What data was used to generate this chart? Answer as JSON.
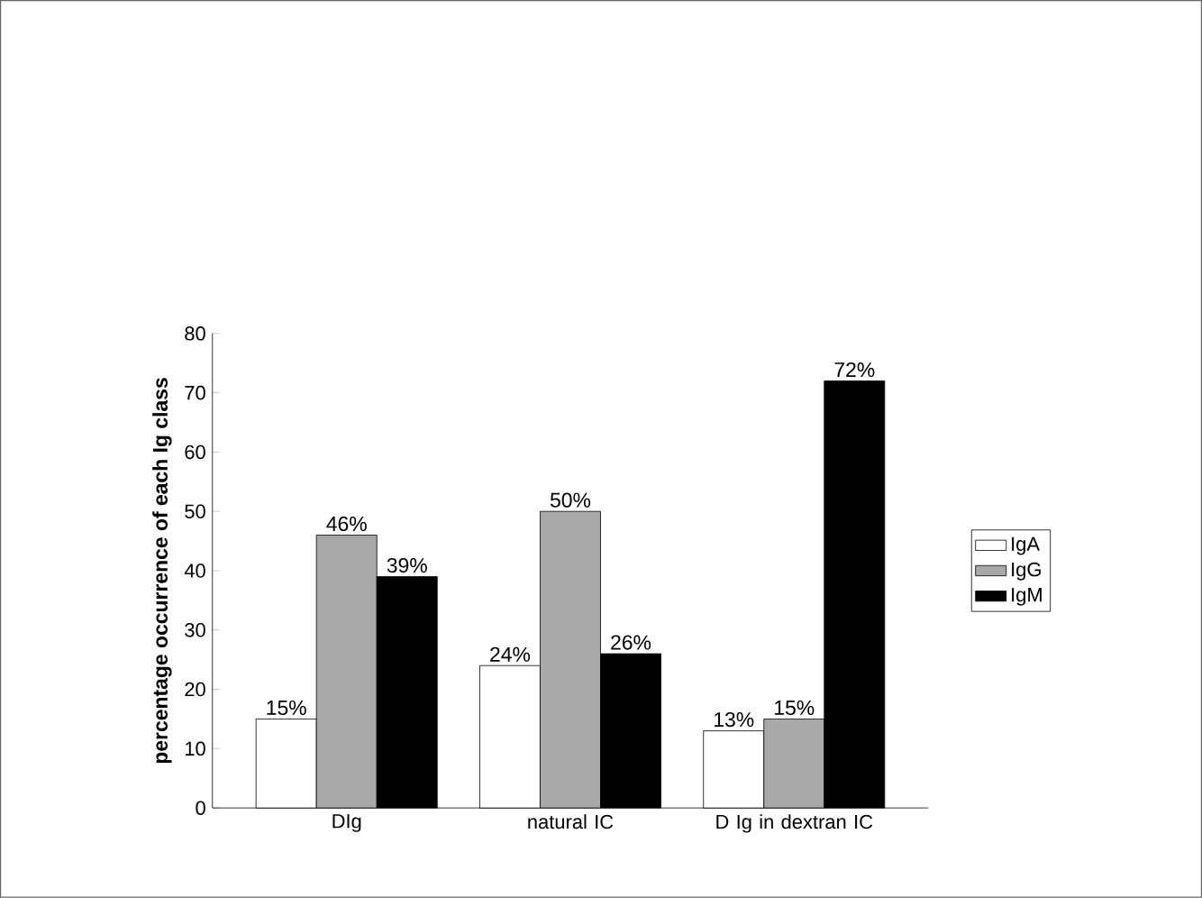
{
  "chart_data": {
    "type": "bar",
    "ylabel": "percentage occurrence of each Ig class",
    "categories": [
      "DIg",
      "natural IC",
      "D Ig in dextran IC"
    ],
    "series": [
      {
        "name": "IgA",
        "color": "#ffffff",
        "values": [
          15,
          24,
          13
        ],
        "value_labels": [
          "15%",
          "24%",
          "13%"
        ]
      },
      {
        "name": "IgG",
        "color": "#a8a8a8",
        "values": [
          46,
          50,
          15
        ],
        "value_labels": [
          "46%",
          "50%",
          "15%"
        ]
      },
      {
        "name": "IgM",
        "color": "#000000",
        "values": [
          39,
          26,
          72
        ],
        "value_labels": [
          "39%",
          "26%",
          "72%"
        ]
      }
    ],
    "ylim": [
      0,
      80
    ],
    "yticks": [
      0,
      10,
      20,
      30,
      40,
      50,
      60,
      70,
      80
    ],
    "grid": false,
    "legend": "right"
  }
}
